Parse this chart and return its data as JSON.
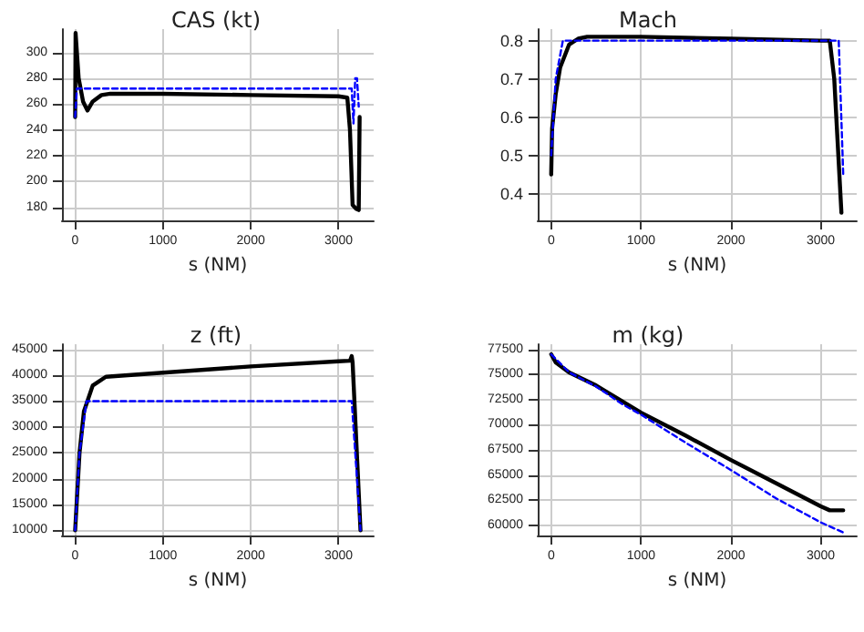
{
  "chart_data": [
    {
      "type": "line",
      "title": "CAS (kt)",
      "xlabel": "s (NM)",
      "xlim": [
        -150,
        3400
      ],
      "xticks": [
        0,
        1000,
        2000,
        3000
      ],
      "ylim": [
        170,
        318
      ],
      "yticks": [
        180,
        200,
        220,
        240,
        260,
        280,
        300
      ],
      "grid": true,
      "series": [
        {
          "color": "#000000",
          "line_style": "solid",
          "x": [
            0,
            5,
            40,
            90,
            140,
            200,
            300,
            400,
            1000,
            2000,
            3000,
            3100,
            3130,
            3160,
            3200,
            3230,
            3240
          ],
          "values": [
            250,
            315,
            280,
            262,
            255,
            262,
            267,
            268,
            268,
            267,
            266,
            265,
            240,
            182,
            179,
            178,
            250
          ]
        },
        {
          "color": "#0000ff",
          "line_style": "dashed",
          "x": [
            0,
            20,
            100,
            1000,
            2000,
            3150,
            3170,
            3190,
            3210,
            3230
          ],
          "values": [
            250,
            272,
            272,
            272,
            272,
            272,
            245,
            280,
            280,
            258
          ]
        }
      ]
    },
    {
      "type": "line",
      "title": "Mach",
      "xlabel": "s (NM)",
      "xlim": [
        -150,
        3400
      ],
      "xticks": [
        0,
        1000,
        2000,
        3000
      ],
      "ylim": [
        0.33,
        0.83
      ],
      "yticks": [
        0.4,
        0.5,
        0.6,
        0.7,
        0.8
      ],
      "grid": true,
      "series": [
        {
          "color": "#000000",
          "line_style": "solid",
          "x": [
            0,
            10,
            50,
            100,
            200,
            300,
            400,
            1000,
            2000,
            3000,
            3100,
            3150,
            3230
          ],
          "values": [
            0.45,
            0.57,
            0.66,
            0.73,
            0.79,
            0.805,
            0.81,
            0.81,
            0.805,
            0.8,
            0.8,
            0.7,
            0.35
          ]
        },
        {
          "color": "#0000ff",
          "line_style": "dashed",
          "x": [
            0,
            50,
            130,
            1000,
            2000,
            3150,
            3200,
            3250
          ],
          "values": [
            0.5,
            0.7,
            0.8,
            0.8,
            0.8,
            0.8,
            0.8,
            0.45
          ]
        }
      ]
    },
    {
      "type": "line",
      "title": "z (ft)",
      "xlabel": "s (NM)",
      "xlim": [
        -150,
        3400
      ],
      "xticks": [
        0,
        1000,
        2000,
        3000
      ],
      "ylim": [
        9000,
        46000
      ],
      "yticks": [
        10000,
        15000,
        20000,
        25000,
        30000,
        35000,
        40000,
        45000
      ],
      "grid": true,
      "series": [
        {
          "color": "#000000",
          "line_style": "solid",
          "x": [
            0,
            50,
            100,
            200,
            350,
            1000,
            2000,
            3000,
            3130,
            3150,
            3160,
            3250
          ],
          "values": [
            10000,
            25000,
            33000,
            38000,
            39700,
            40500,
            41700,
            42700,
            42800,
            43700,
            42500,
            10000
          ]
        },
        {
          "color": "#0000ff",
          "line_style": "dashed",
          "x": [
            0,
            50,
            130,
            1000,
            2000,
            3150,
            3250
          ],
          "values": [
            10000,
            25000,
            35000,
            35000,
            35000,
            35000,
            10000
          ]
        }
      ]
    },
    {
      "type": "line",
      "title": "m (kg)",
      "xlabel": "s (NM)",
      "xlim": [
        -150,
        3400
      ],
      "xticks": [
        0,
        1000,
        2000,
        3000
      ],
      "ylim": [
        59000,
        78000
      ],
      "yticks": [
        60000,
        62500,
        65000,
        67500,
        70000,
        72500,
        75000,
        77500
      ],
      "grid": true,
      "series": [
        {
          "color": "#000000",
          "line_style": "solid",
          "x": [
            0,
            50,
            200,
            500,
            1000,
            1500,
            2000,
            2500,
            3000,
            3100,
            3250
          ],
          "values": [
            77000,
            76200,
            75200,
            73900,
            71200,
            68900,
            66500,
            64200,
            61900,
            61500,
            61500
          ]
        },
        {
          "color": "#0000ff",
          "line_style": "dashed",
          "x": [
            0,
            200,
            500,
            800,
            1000,
            1500,
            2000,
            2500,
            3000,
            3250
          ],
          "values": [
            77000,
            75200,
            73800,
            72000,
            71000,
            68200,
            65500,
            62700,
            60300,
            59300
          ]
        }
      ]
    }
  ]
}
